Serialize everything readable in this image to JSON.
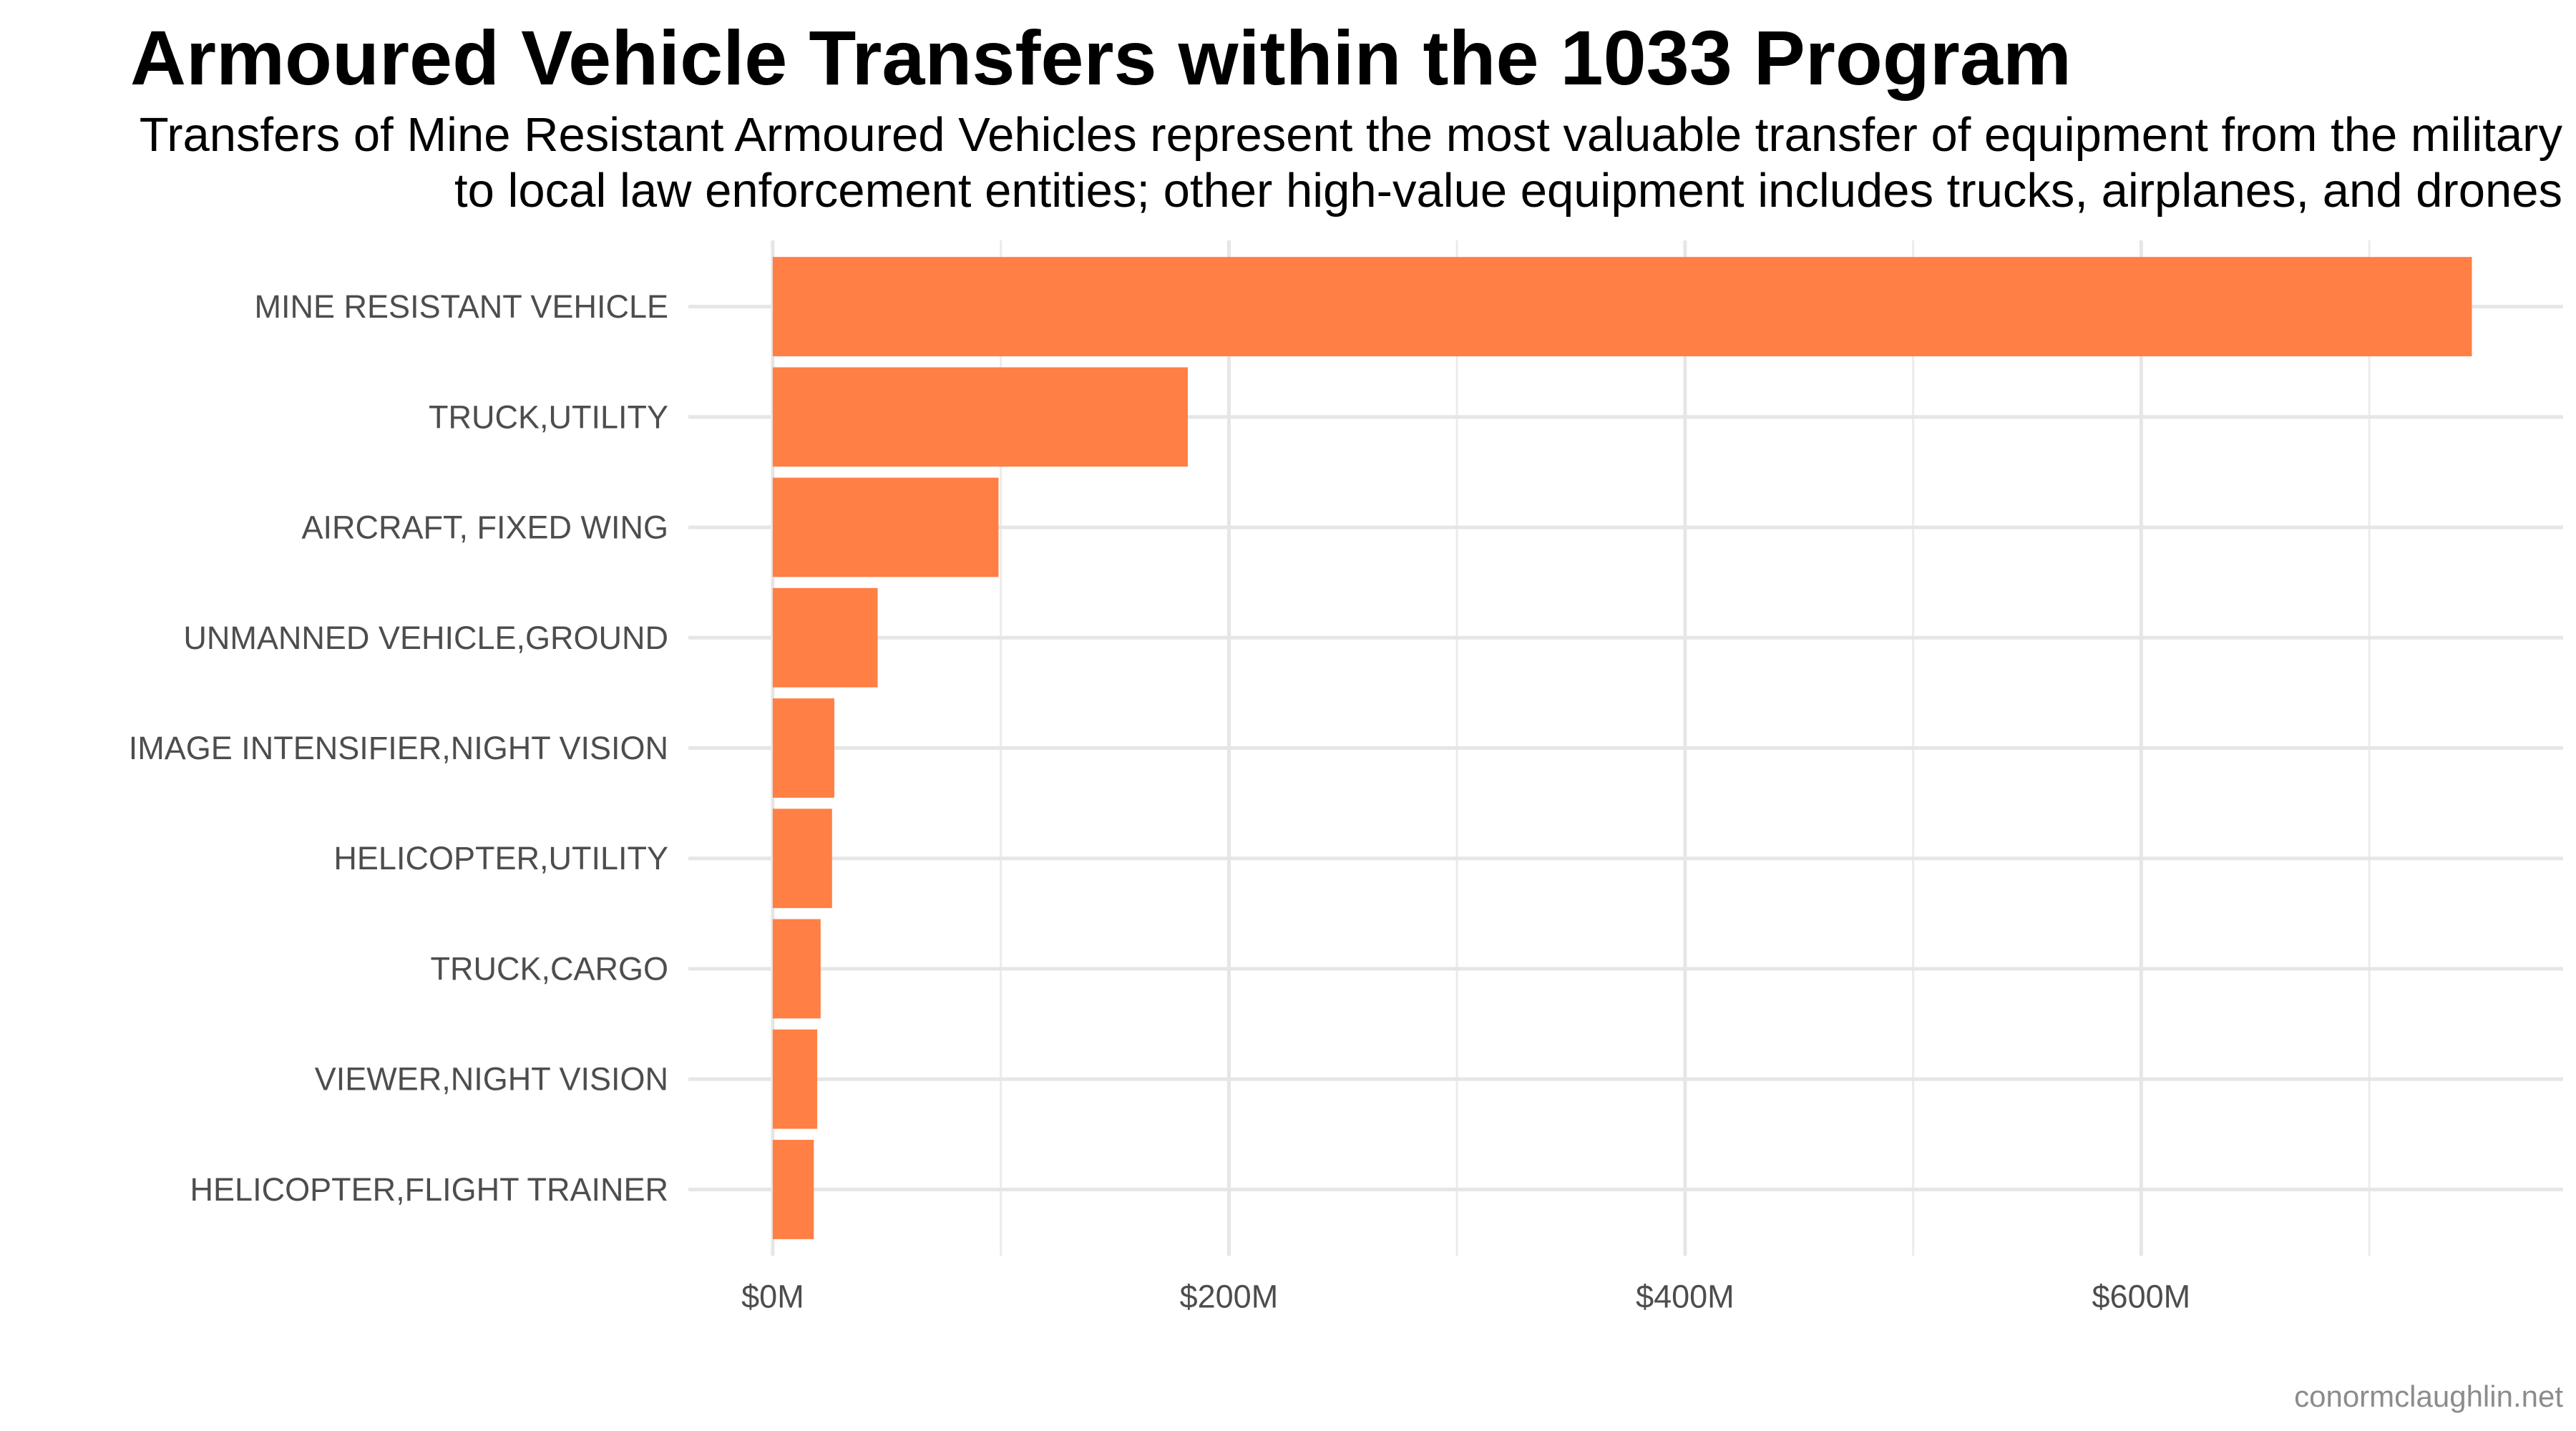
{
  "chart_data": {
    "type": "bar",
    "orientation": "horizontal",
    "title": "Armoured Vehicle Transfers within the 1033 Program",
    "subtitle": [
      "Transfers of Mine Resistant Armoured Vehicles represent the most valuable transfer of equipment from the military",
      "to local law enforcement entities; other high-value equipment includes trucks, airplanes, and drones"
    ],
    "categories": [
      "MINE RESISTANT VEHICLE",
      "TRUCK,UTILITY",
      "AIRCRAFT, FIXED WING",
      "UNMANNED VEHICLE,GROUND",
      "IMAGE INTENSIFIER,NIGHT VISION",
      "HELICOPTER,UTILITY",
      "TRUCK,CARGO",
      "VIEWER,NIGHT VISION",
      "HELICOPTER,FLIGHT TRAINER"
    ],
    "values": [
      745,
      182,
      99,
      46,
      27,
      26,
      21,
      19.5,
      18
    ],
    "unit": "millions USD",
    "xlim": [
      -37,
      785
    ],
    "xticks": [
      0,
      200,
      400,
      600
    ],
    "xtick_labels": [
      "$0M",
      "$200M",
      "$400M",
      "$600M"
    ],
    "xlabel": "",
    "ylabel": "",
    "grid": true,
    "legend": "none",
    "bar_color": "#FF7F45",
    "caption": "conormclaughlin.net"
  }
}
